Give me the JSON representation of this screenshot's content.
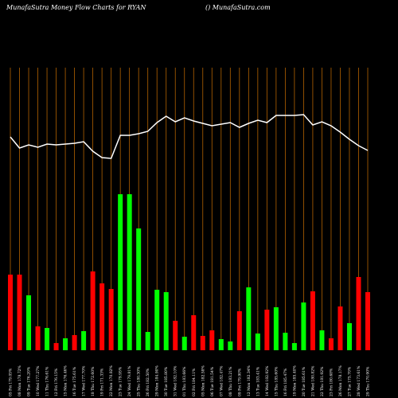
{
  "chart_data": {
    "type": "money-flow",
    "title": "MunafaSutra  Money Flow  Charts for RYAN",
    "subtitle": "() MunafaSutra.com",
    "categories": [
      "05 Fri 179.05%",
      "08 Mon 178.72%",
      "09 Tue 176.20%",
      "10 Wed 177.27%",
      "11 Thu 176.61%",
      "12 Fri 176.15%",
      "15 Mon 176.46%",
      "16 Tue 175.61%",
      "17 Wed 177.70%",
      "18 Thu 172.60%",
      "19 Fri 171.33%",
      "22 Mon 170.82%",
      "23 Tue 179.95%",
      "24 Wed 179.81%",
      "25 Thu 180.30%",
      "26 Fri 182.50%",
      "29 Mon 184.90%",
      "30 Tue 185.80%",
      "31 Wed 182.10%",
      "01 Thu 183.66%",
      "02 Fri 184.11%",
      "05 Mon 182.58%",
      "06 Tue 181.54%",
      "07 Wed 182.47%",
      "08 Thu 183.21%",
      "09 Fri 179.90%",
      "12 Mon 182.34%",
      "13 Tue 183.41%",
      "14 Wed 182.92%",
      "15 Thu 185.60%",
      "16 Fri 185.47%",
      "19 Mon 185.40%",
      "20 Tue 185.61%",
      "21 Wed 180.82%",
      "22 Thu 181.92%",
      "23 Fri 180.68%",
      "26 Mon 178.17%",
      "27 Tue 175.70%",
      "28 Wed 173.61%",
      "29 Thu 170.90%"
    ],
    "series": [
      {
        "name": "Money Flow",
        "values": [
          95,
          95,
          69,
          30,
          28,
          9,
          15,
          19,
          24,
          99,
          84,
          77,
          196,
          196,
          153,
          23,
          76,
          73,
          37,
          17,
          44,
          18,
          25,
          14,
          11,
          49,
          79,
          21,
          51,
          54,
          22,
          9,
          60,
          74,
          25,
          15,
          55,
          34,
          92,
          73
        ],
        "colors": [
          "#ff0000",
          "#ff0000",
          "#00ff00",
          "#ff0000",
          "#00ff00",
          "#ff0000",
          "#00ff00",
          "#ff0000",
          "#00ff00",
          "#ff0000",
          "#ff0000",
          "#ff0000",
          "#00ff00",
          "#00ff00",
          "#00ff00",
          "#00ff00",
          "#00ff00",
          "#00ff00",
          "#ff0000",
          "#00ff00",
          "#ff0000",
          "#ff0000",
          "#ff0000",
          "#00ff00",
          "#00ff00",
          "#ff0000",
          "#00ff00",
          "#00ff00",
          "#ff0000",
          "#00ff00",
          "#00ff00",
          "#00ff00",
          "#00ff00",
          "#ff0000",
          "#00ff00",
          "#ff0000",
          "#ff0000",
          "#00ff00",
          "#ff0000",
          "#ff0000"
        ]
      },
      {
        "name": "Price",
        "color": "#ffffff",
        "values": [
          268,
          254,
          258,
          255,
          259,
          258,
          259,
          260,
          262,
          250,
          242,
          241,
          270,
          270,
          272,
          275,
          286,
          294,
          287,
          292,
          288,
          285,
          282,
          284,
          286,
          280,
          285,
          289,
          286,
          295,
          295,
          295,
          296,
          283,
          287,
          282,
          274,
          265,
          257,
          251
        ]
      }
    ],
    "ylim": [
      0,
      440
    ]
  }
}
